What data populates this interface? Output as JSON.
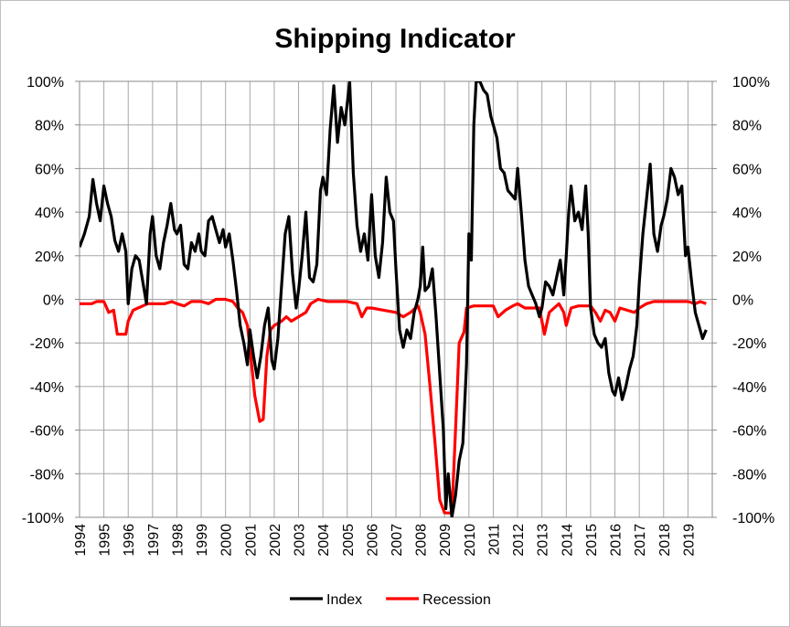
{
  "chart_data": {
    "type": "line",
    "title": "Shipping Indicator",
    "xlabel": "",
    "ylabel": "",
    "x_tick_labels": [
      "1994",
      "1995",
      "1996",
      "1997",
      "1998",
      "1999",
      "2000",
      "2001",
      "2002",
      "2003",
      "2004",
      "2005",
      "2006",
      "2007",
      "2008",
      "2009",
      "2010",
      "2011",
      "2012",
      "2013",
      "2014",
      "2015",
      "2016",
      "2017",
      "2018",
      "2019"
    ],
    "y_tick_labels": [
      "100%",
      "80%",
      "60%",
      "40%",
      "20%",
      "0%",
      "-20%",
      "-40%",
      "-60%",
      "-80%",
      "-100%"
    ],
    "xlim": [
      1994,
      2020
    ],
    "ylim": [
      -100,
      100
    ],
    "grid": true,
    "legend_position": "bottom-center",
    "series": [
      {
        "name": "Index",
        "color": "#000000",
        "points": [
          [
            1994.0,
            24
          ],
          [
            1994.2,
            30
          ],
          [
            1994.4,
            38
          ],
          [
            1994.55,
            55
          ],
          [
            1994.7,
            44
          ],
          [
            1994.85,
            36
          ],
          [
            1995.0,
            52
          ],
          [
            1995.15,
            44
          ],
          [
            1995.3,
            38
          ],
          [
            1995.45,
            27
          ],
          [
            1995.6,
            22
          ],
          [
            1995.75,
            30
          ],
          [
            1995.9,
            22
          ],
          [
            1996.0,
            -2
          ],
          [
            1996.15,
            14
          ],
          [
            1996.3,
            20
          ],
          [
            1996.45,
            18
          ],
          [
            1996.6,
            8
          ],
          [
            1996.75,
            -2
          ],
          [
            1996.9,
            30
          ],
          [
            1997.0,
            38
          ],
          [
            1997.15,
            20
          ],
          [
            1997.3,
            14
          ],
          [
            1997.45,
            26
          ],
          [
            1997.6,
            34
          ],
          [
            1997.75,
            44
          ],
          [
            1997.9,
            32
          ],
          [
            1998.0,
            30
          ],
          [
            1998.15,
            34
          ],
          [
            1998.3,
            16
          ],
          [
            1998.45,
            14
          ],
          [
            1998.6,
            26
          ],
          [
            1998.75,
            22
          ],
          [
            1998.9,
            30
          ],
          [
            1999.0,
            22
          ],
          [
            1999.15,
            20
          ],
          [
            1999.3,
            36
          ],
          [
            1999.45,
            38
          ],
          [
            1999.6,
            32
          ],
          [
            1999.75,
            26
          ],
          [
            1999.9,
            32
          ],
          [
            2000.0,
            24
          ],
          [
            2000.15,
            30
          ],
          [
            2000.3,
            18
          ],
          [
            2000.45,
            4
          ],
          [
            2000.6,
            -12
          ],
          [
            2000.75,
            -20
          ],
          [
            2000.9,
            -30
          ],
          [
            2001.0,
            -14
          ],
          [
            2001.15,
            -26
          ],
          [
            2001.3,
            -36
          ],
          [
            2001.45,
            -26
          ],
          [
            2001.6,
            -12
          ],
          [
            2001.75,
            -4
          ],
          [
            2001.9,
            -28
          ],
          [
            2002.0,
            -32
          ],
          [
            2002.15,
            -18
          ],
          [
            2002.3,
            6
          ],
          [
            2002.45,
            30
          ],
          [
            2002.6,
            38
          ],
          [
            2002.75,
            12
          ],
          [
            2002.9,
            -4
          ],
          [
            2003.0,
            4
          ],
          [
            2003.15,
            20
          ],
          [
            2003.3,
            40
          ],
          [
            2003.45,
            10
          ],
          [
            2003.6,
            8
          ],
          [
            2003.75,
            16
          ],
          [
            2003.9,
            50
          ],
          [
            2004.0,
            56
          ],
          [
            2004.15,
            48
          ],
          [
            2004.3,
            78
          ],
          [
            2004.45,
            98
          ],
          [
            2004.6,
            72
          ],
          [
            2004.75,
            88
          ],
          [
            2004.9,
            80
          ],
          [
            2005.0,
            90
          ],
          [
            2005.1,
            100
          ],
          [
            2005.25,
            58
          ],
          [
            2005.4,
            34
          ],
          [
            2005.55,
            22
          ],
          [
            2005.7,
            30
          ],
          [
            2005.85,
            18
          ],
          [
            2006.0,
            48
          ],
          [
            2006.15,
            20
          ],
          [
            2006.3,
            10
          ],
          [
            2006.45,
            26
          ],
          [
            2006.6,
            56
          ],
          [
            2006.75,
            40
          ],
          [
            2006.9,
            36
          ],
          [
            2007.0,
            14
          ],
          [
            2007.15,
            -14
          ],
          [
            2007.3,
            -22
          ],
          [
            2007.45,
            -14
          ],
          [
            2007.6,
            -18
          ],
          [
            2007.75,
            -6
          ],
          [
            2007.9,
            0
          ],
          [
            2008.0,
            6
          ],
          [
            2008.1,
            24
          ],
          [
            2008.2,
            4
          ],
          [
            2008.35,
            6
          ],
          [
            2008.5,
            14
          ],
          [
            2008.65,
            -8
          ],
          [
            2008.8,
            -34
          ],
          [
            2008.95,
            -60
          ],
          [
            2009.05,
            -96
          ],
          [
            2009.15,
            -80
          ],
          [
            2009.3,
            -100
          ],
          [
            2009.45,
            -90
          ],
          [
            2009.6,
            -74
          ],
          [
            2009.75,
            -66
          ],
          [
            2009.9,
            -30
          ],
          [
            2010.0,
            30
          ],
          [
            2010.1,
            18
          ],
          [
            2010.2,
            80
          ],
          [
            2010.3,
            100
          ],
          [
            2010.45,
            100
          ],
          [
            2010.6,
            96
          ],
          [
            2010.75,
            94
          ],
          [
            2010.9,
            84
          ],
          [
            2011.0,
            80
          ],
          [
            2011.15,
            74
          ],
          [
            2011.3,
            60
          ],
          [
            2011.45,
            58
          ],
          [
            2011.6,
            50
          ],
          [
            2011.75,
            48
          ],
          [
            2011.9,
            46
          ],
          [
            2012.0,
            60
          ],
          [
            2012.15,
            40
          ],
          [
            2012.3,
            18
          ],
          [
            2012.45,
            6
          ],
          [
            2012.6,
            2
          ],
          [
            2012.75,
            -2
          ],
          [
            2012.9,
            -8
          ],
          [
            2013.0,
            -4
          ],
          [
            2013.15,
            8
          ],
          [
            2013.3,
            6
          ],
          [
            2013.45,
            2
          ],
          [
            2013.6,
            10
          ],
          [
            2013.75,
            18
          ],
          [
            2013.9,
            2
          ],
          [
            2014.0,
            20
          ],
          [
            2014.1,
            40
          ],
          [
            2014.2,
            52
          ],
          [
            2014.35,
            36
          ],
          [
            2014.5,
            40
          ],
          [
            2014.65,
            32
          ],
          [
            2014.8,
            52
          ],
          [
            2014.9,
            30
          ],
          [
            2015.0,
            -4
          ],
          [
            2015.15,
            -16
          ],
          [
            2015.3,
            -20
          ],
          [
            2015.45,
            -22
          ],
          [
            2015.6,
            -18
          ],
          [
            2015.75,
            -34
          ],
          [
            2015.9,
            -42
          ],
          [
            2016.0,
            -44
          ],
          [
            2016.15,
            -36
          ],
          [
            2016.3,
            -46
          ],
          [
            2016.45,
            -40
          ],
          [
            2016.6,
            -32
          ],
          [
            2016.75,
            -26
          ],
          [
            2016.9,
            -12
          ],
          [
            2017.0,
            8
          ],
          [
            2017.15,
            30
          ],
          [
            2017.3,
            46
          ],
          [
            2017.45,
            62
          ],
          [
            2017.6,
            30
          ],
          [
            2017.75,
            22
          ],
          [
            2017.9,
            34
          ],
          [
            2018.0,
            38
          ],
          [
            2018.15,
            46
          ],
          [
            2018.3,
            60
          ],
          [
            2018.45,
            56
          ],
          [
            2018.6,
            48
          ],
          [
            2018.75,
            52
          ],
          [
            2018.9,
            20
          ],
          [
            2019.0,
            24
          ],
          [
            2019.15,
            8
          ],
          [
            2019.3,
            -6
          ],
          [
            2019.45,
            -12
          ],
          [
            2019.6,
            -18
          ],
          [
            2019.75,
            -14
          ]
        ]
      },
      {
        "name": "Recession",
        "color": "#ff0000",
        "points": [
          [
            1994.0,
            -2
          ],
          [
            1994.5,
            -2
          ],
          [
            1994.7,
            -1
          ],
          [
            1995.0,
            -1
          ],
          [
            1995.2,
            -6
          ],
          [
            1995.4,
            -5
          ],
          [
            1995.55,
            -16
          ],
          [
            1995.9,
            -16
          ],
          [
            1996.0,
            -10
          ],
          [
            1996.2,
            -5
          ],
          [
            1996.4,
            -4
          ],
          [
            1996.6,
            -3
          ],
          [
            1996.8,
            -2
          ],
          [
            1997.0,
            -2
          ],
          [
            1997.5,
            -2
          ],
          [
            1997.8,
            -1
          ],
          [
            1998.0,
            -2
          ],
          [
            1998.3,
            -3
          ],
          [
            1998.6,
            -1
          ],
          [
            1999.0,
            -1
          ],
          [
            1999.3,
            -2
          ],
          [
            1999.6,
            0
          ],
          [
            2000.0,
            0
          ],
          [
            2000.3,
            -1
          ],
          [
            2000.5,
            -4
          ],
          [
            2000.7,
            -6
          ],
          [
            2000.9,
            -12
          ],
          [
            2001.0,
            -22
          ],
          [
            2001.2,
            -44
          ],
          [
            2001.4,
            -56
          ],
          [
            2001.55,
            -55
          ],
          [
            2001.7,
            -26
          ],
          [
            2001.85,
            -14
          ],
          [
            2002.0,
            -12
          ],
          [
            2002.3,
            -10
          ],
          [
            2002.5,
            -8
          ],
          [
            2002.7,
            -10
          ],
          [
            2003.0,
            -8
          ],
          [
            2003.3,
            -6
          ],
          [
            2003.5,
            -2
          ],
          [
            2003.8,
            0
          ],
          [
            2004.2,
            -1
          ],
          [
            2004.6,
            -1
          ],
          [
            2005.0,
            -1
          ],
          [
            2005.4,
            -2
          ],
          [
            2005.6,
            -8
          ],
          [
            2005.8,
            -4
          ],
          [
            2006.0,
            -4
          ],
          [
            2006.5,
            -5
          ],
          [
            2007.0,
            -6
          ],
          [
            2007.3,
            -8
          ],
          [
            2007.6,
            -6
          ],
          [
            2007.9,
            -3
          ],
          [
            2008.0,
            -6
          ],
          [
            2008.2,
            -16
          ],
          [
            2008.4,
            -40
          ],
          [
            2008.6,
            -65
          ],
          [
            2008.8,
            -92
          ],
          [
            2009.0,
            -98
          ],
          [
            2009.3,
            -98
          ],
          [
            2009.45,
            -60
          ],
          [
            2009.6,
            -20
          ],
          [
            2009.8,
            -15
          ],
          [
            2009.9,
            -4
          ],
          [
            2010.2,
            -3
          ],
          [
            2010.6,
            -3
          ],
          [
            2011.0,
            -3
          ],
          [
            2011.2,
            -8
          ],
          [
            2011.5,
            -5
          ],
          [
            2011.8,
            -3
          ],
          [
            2012.0,
            -2
          ],
          [
            2012.3,
            -4
          ],
          [
            2012.6,
            -4
          ],
          [
            2012.9,
            -4
          ],
          [
            2013.0,
            -10
          ],
          [
            2013.1,
            -16
          ],
          [
            2013.3,
            -6
          ],
          [
            2013.5,
            -4
          ],
          [
            2013.7,
            -2
          ],
          [
            2013.9,
            -6
          ],
          [
            2014.0,
            -12
          ],
          [
            2014.2,
            -4
          ],
          [
            2014.5,
            -3
          ],
          [
            2014.8,
            -3
          ],
          [
            2015.0,
            -3
          ],
          [
            2015.2,
            -6
          ],
          [
            2015.4,
            -10
          ],
          [
            2015.6,
            -5
          ],
          [
            2015.8,
            -6
          ],
          [
            2016.0,
            -10
          ],
          [
            2016.2,
            -4
          ],
          [
            2016.5,
            -5
          ],
          [
            2016.8,
            -6
          ],
          [
            2017.0,
            -4
          ],
          [
            2017.3,
            -2
          ],
          [
            2017.6,
            -1
          ],
          [
            2018.0,
            -1
          ],
          [
            2018.4,
            -1
          ],
          [
            2018.7,
            -1
          ],
          [
            2019.0,
            -1
          ],
          [
            2019.3,
            -2
          ],
          [
            2019.5,
            -1
          ],
          [
            2019.75,
            -2
          ]
        ]
      }
    ]
  }
}
